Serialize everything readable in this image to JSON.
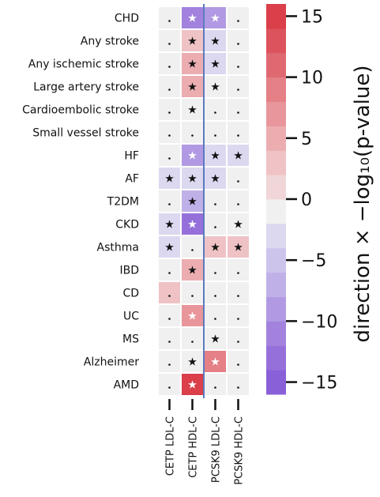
{
  "chart_data": {
    "type": "heatmap",
    "rows": [
      "CHD",
      "Any stroke",
      "Any ischemic stroke",
      "Large artery stroke",
      "Cardioembolic stroke",
      "Small vessel stroke",
      "HF",
      "AF",
      "T2DM",
      "CKD",
      "Asthma",
      "IBD",
      "CD",
      "UC",
      "MS",
      "Alzheimer",
      "AMD"
    ],
    "columns": [
      "CETP LDL-C",
      "CETP HDL-C",
      "PCSK9 LDL-C",
      "PCSK9 HDL-C"
    ],
    "values": [
      [
        0,
        -12,
        -9,
        0
      ],
      [
        0,
        3,
        -3,
        0
      ],
      [
        0,
        4,
        -3,
        0
      ],
      [
        0,
        5,
        -2,
        0
      ],
      [
        0,
        -2,
        0,
        0
      ],
      [
        0,
        0,
        0,
        0
      ],
      [
        0,
        -9,
        -3,
        -3
      ],
      [
        -3,
        -4,
        -3,
        0
      ],
      [
        0,
        -8,
        0,
        0
      ],
      [
        -4,
        -14,
        0,
        -2
      ],
      [
        -3,
        0,
        2,
        3
      ],
      [
        0,
        5,
        0,
        0
      ],
      [
        2,
        0,
        0,
        0
      ],
      [
        0,
        7,
        0,
        0
      ],
      [
        0,
        0,
        -2,
        0
      ],
      [
        0,
        -2,
        8,
        0
      ],
      [
        0,
        14,
        0,
        0
      ]
    ],
    "markers": [
      [
        ".",
        "☆",
        "☆",
        "."
      ],
      [
        ".",
        "★",
        "★",
        "."
      ],
      [
        ".",
        "★",
        "★",
        "."
      ],
      [
        ".",
        "★",
        "★",
        "."
      ],
      [
        ".",
        "★",
        ".",
        "."
      ],
      [
        ".",
        ".",
        ".",
        "."
      ],
      [
        ".",
        "☆",
        "★",
        "★"
      ],
      [
        "★",
        "★",
        "★",
        "."
      ],
      [
        ".",
        "★",
        ".",
        "."
      ],
      [
        "★",
        "☆",
        ".",
        "★"
      ],
      [
        "★",
        ".",
        "★",
        "★"
      ],
      [
        ".",
        "★",
        ".",
        "."
      ],
      [
        ".",
        ".",
        ".",
        "."
      ],
      [
        ".",
        "☆",
        ".",
        "."
      ],
      [
        ".",
        ".",
        "★",
        "."
      ],
      [
        ".",
        "★",
        "☆",
        "."
      ],
      [
        ".",
        "☆",
        ".",
        "."
      ]
    ],
    "colorbar": {
      "label": "direction × −log₁₀(p-value)",
      "ticks": [
        15,
        10,
        5,
        0,
        -5,
        -10,
        -15
      ],
      "tick_labels": [
        "15",
        "10",
        "5",
        "0",
        "−5",
        "−10",
        "−15"
      ],
      "range": [
        -16,
        16
      ],
      "colors": [
        "#8a60d8",
        "#9670da",
        "#a382de",
        "#b19ae3",
        "#bfb0e8",
        "#cdc4ec",
        "#dbd8f0",
        "#f0f0f0",
        "#f0d6d8",
        "#efc2c5",
        "#ecadb1",
        "#e8969b",
        "#e48086",
        "#df6971",
        "#dc535d",
        "#da3f4a"
      ]
    },
    "divider_after_column": 1,
    "grid": false
  }
}
